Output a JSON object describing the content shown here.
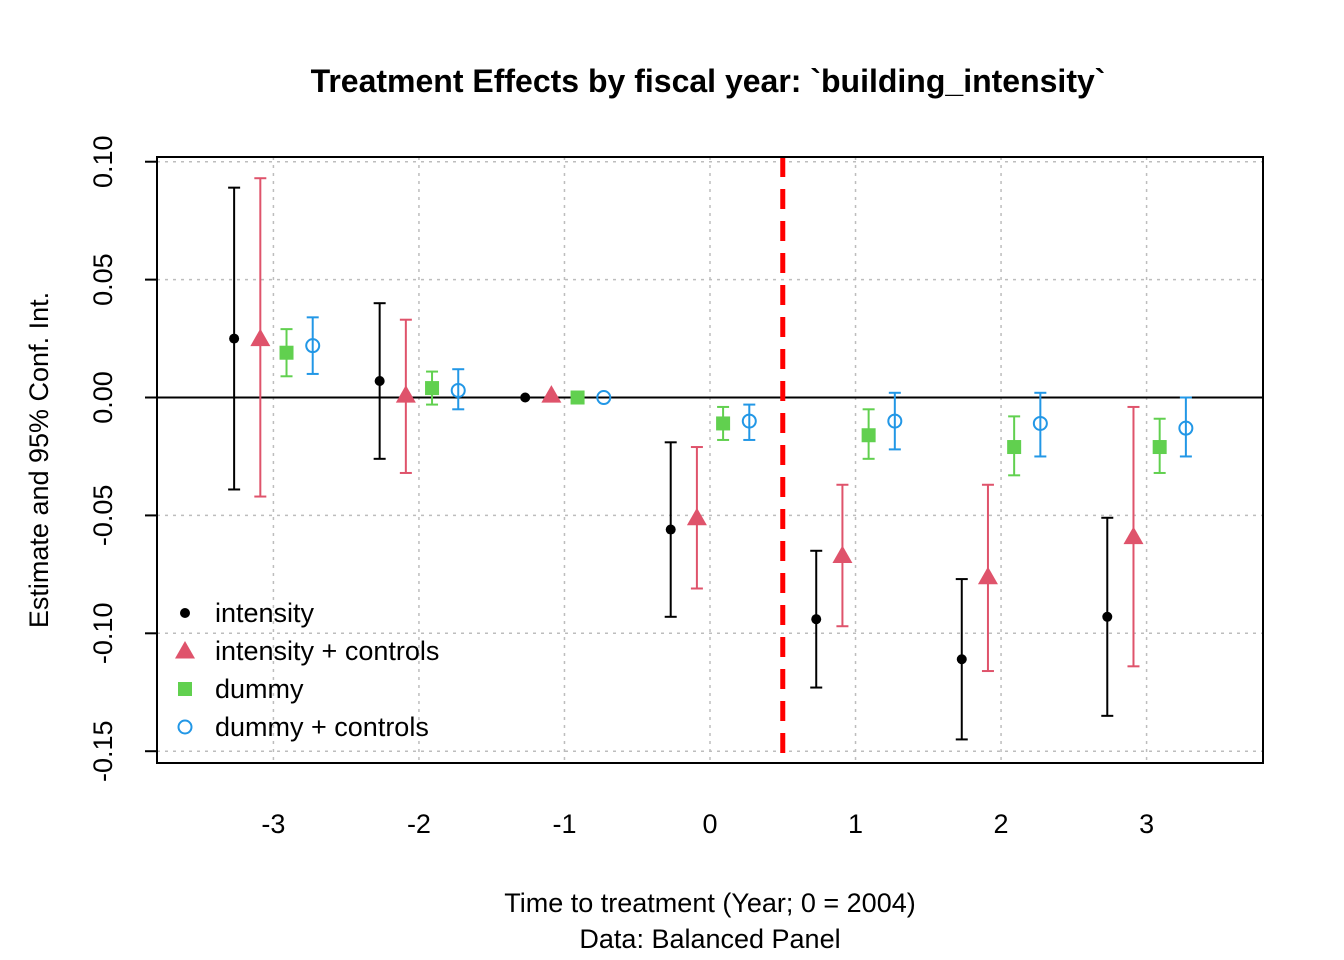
{
  "chart_data": {
    "type": "scatter",
    "title": "Treatment Effects by fiscal year: `building_intensity`",
    "xlabel": "Time to treatment (Year; 0 = 2004)",
    "subxlabel": "Data: Balanced Panel",
    "ylabel": "Estimate and 95% Conf. Int.",
    "x_ticks": [
      -3,
      -2,
      -1,
      0,
      1,
      2,
      3
    ],
    "x_tick_labels": [
      "-3",
      "-2",
      "-1",
      "0",
      "1",
      "2",
      "3"
    ],
    "y_ticks": [
      -0.15,
      -0.1,
      -0.05,
      0.0,
      0.05,
      0.1
    ],
    "y_tick_labels": [
      "-0.15",
      "-0.10",
      "-0.05",
      "0.00",
      "0.05",
      "0.10"
    ],
    "xlim": [
      -3.8,
      3.8
    ],
    "ylim": [
      -0.155,
      0.102
    ],
    "grid": true,
    "zero_line": 0,
    "treatment_line": {
      "x": 0.5,
      "color": "#ff0000",
      "style": "dashed"
    },
    "legend_position": "bottom-left",
    "series": [
      {
        "name": "intensity",
        "color": "#000000",
        "marker": "dot",
        "offset": -0.27,
        "x": [
          -3,
          -2,
          -1,
          0,
          1,
          2,
          3
        ],
        "y": [
          0.025,
          0.007,
          0.0,
          -0.056,
          -0.094,
          -0.111,
          -0.093
        ],
        "lower": [
          -0.039,
          -0.026,
          0.0,
          -0.093,
          -0.123,
          -0.145,
          -0.135
        ],
        "upper": [
          0.089,
          0.04,
          0.0,
          -0.019,
          -0.065,
          -0.077,
          -0.051
        ]
      },
      {
        "name": "intensity + controls",
        "color": "#df536b",
        "marker": "triangle",
        "offset": -0.09,
        "x": [
          -3,
          -2,
          -1,
          0,
          1,
          2,
          3
        ],
        "y": [
          0.025,
          0.001,
          0.001,
          -0.051,
          -0.067,
          -0.076,
          -0.059
        ],
        "lower": [
          -0.042,
          -0.032,
          0.001,
          -0.081,
          -0.097,
          -0.116,
          -0.114
        ],
        "upper": [
          0.093,
          0.033,
          0.001,
          -0.021,
          -0.037,
          -0.037,
          -0.004
        ]
      },
      {
        "name": "dummy",
        "color": "#61d04f",
        "marker": "square",
        "offset": 0.09,
        "x": [
          -3,
          -2,
          -1,
          0,
          1,
          2,
          3
        ],
        "y": [
          0.019,
          0.004,
          0.0,
          -0.011,
          -0.016,
          -0.021,
          -0.021
        ],
        "lower": [
          0.009,
          -0.003,
          0.0,
          -0.018,
          -0.026,
          -0.033,
          -0.032
        ],
        "upper": [
          0.029,
          0.011,
          0.0,
          -0.004,
          -0.005,
          -0.008,
          -0.009
        ]
      },
      {
        "name": "dummy + controls",
        "color": "#2297e6",
        "marker": "circle-open",
        "offset": 0.27,
        "x": [
          -3,
          -2,
          -1,
          0,
          1,
          2,
          3
        ],
        "y": [
          0.022,
          0.003,
          0.0,
          -0.01,
          -0.01,
          -0.011,
          -0.013
        ],
        "lower": [
          0.01,
          -0.005,
          0.0,
          -0.018,
          -0.022,
          -0.025,
          -0.025
        ],
        "upper": [
          0.034,
          0.012,
          0.0,
          -0.003,
          0.002,
          0.002,
          0.0
        ]
      }
    ]
  }
}
